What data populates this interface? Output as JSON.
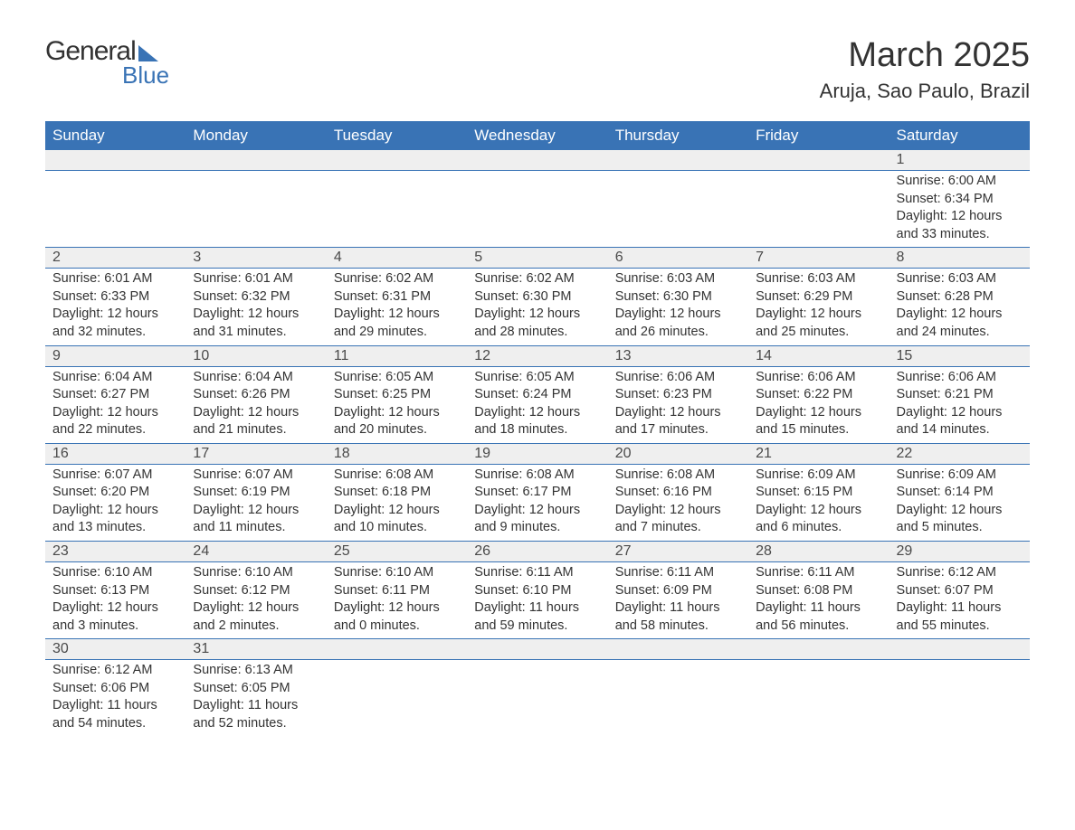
{
  "logo": {
    "general": "General",
    "blue": "Blue"
  },
  "header": {
    "month_title": "March 2025",
    "location": "Aruja, Sao Paulo, Brazil"
  },
  "colors": {
    "header_bg": "#3973b5",
    "day_number_bg": "#efefef",
    "text": "#333333",
    "header_text": "#ffffff"
  },
  "weekdays": [
    "Sunday",
    "Monday",
    "Tuesday",
    "Wednesday",
    "Thursday",
    "Friday",
    "Saturday"
  ],
  "weeks": [
    [
      {
        "day": "",
        "sunrise": "",
        "sunset": "",
        "daylight": ""
      },
      {
        "day": "",
        "sunrise": "",
        "sunset": "",
        "daylight": ""
      },
      {
        "day": "",
        "sunrise": "",
        "sunset": "",
        "daylight": ""
      },
      {
        "day": "",
        "sunrise": "",
        "sunset": "",
        "daylight": ""
      },
      {
        "day": "",
        "sunrise": "",
        "sunset": "",
        "daylight": ""
      },
      {
        "day": "",
        "sunrise": "",
        "sunset": "",
        "daylight": ""
      },
      {
        "day": "1",
        "sunrise": "Sunrise: 6:00 AM",
        "sunset": "Sunset: 6:34 PM",
        "daylight": "Daylight: 12 hours and 33 minutes."
      }
    ],
    [
      {
        "day": "2",
        "sunrise": "Sunrise: 6:01 AM",
        "sunset": "Sunset: 6:33 PM",
        "daylight": "Daylight: 12 hours and 32 minutes."
      },
      {
        "day": "3",
        "sunrise": "Sunrise: 6:01 AM",
        "sunset": "Sunset: 6:32 PM",
        "daylight": "Daylight: 12 hours and 31 minutes."
      },
      {
        "day": "4",
        "sunrise": "Sunrise: 6:02 AM",
        "sunset": "Sunset: 6:31 PM",
        "daylight": "Daylight: 12 hours and 29 minutes."
      },
      {
        "day": "5",
        "sunrise": "Sunrise: 6:02 AM",
        "sunset": "Sunset: 6:30 PM",
        "daylight": "Daylight: 12 hours and 28 minutes."
      },
      {
        "day": "6",
        "sunrise": "Sunrise: 6:03 AM",
        "sunset": "Sunset: 6:30 PM",
        "daylight": "Daylight: 12 hours and 26 minutes."
      },
      {
        "day": "7",
        "sunrise": "Sunrise: 6:03 AM",
        "sunset": "Sunset: 6:29 PM",
        "daylight": "Daylight: 12 hours and 25 minutes."
      },
      {
        "day": "8",
        "sunrise": "Sunrise: 6:03 AM",
        "sunset": "Sunset: 6:28 PM",
        "daylight": "Daylight: 12 hours and 24 minutes."
      }
    ],
    [
      {
        "day": "9",
        "sunrise": "Sunrise: 6:04 AM",
        "sunset": "Sunset: 6:27 PM",
        "daylight": "Daylight: 12 hours and 22 minutes."
      },
      {
        "day": "10",
        "sunrise": "Sunrise: 6:04 AM",
        "sunset": "Sunset: 6:26 PM",
        "daylight": "Daylight: 12 hours and 21 minutes."
      },
      {
        "day": "11",
        "sunrise": "Sunrise: 6:05 AM",
        "sunset": "Sunset: 6:25 PM",
        "daylight": "Daylight: 12 hours and 20 minutes."
      },
      {
        "day": "12",
        "sunrise": "Sunrise: 6:05 AM",
        "sunset": "Sunset: 6:24 PM",
        "daylight": "Daylight: 12 hours and 18 minutes."
      },
      {
        "day": "13",
        "sunrise": "Sunrise: 6:06 AM",
        "sunset": "Sunset: 6:23 PM",
        "daylight": "Daylight: 12 hours and 17 minutes."
      },
      {
        "day": "14",
        "sunrise": "Sunrise: 6:06 AM",
        "sunset": "Sunset: 6:22 PM",
        "daylight": "Daylight: 12 hours and 15 minutes."
      },
      {
        "day": "15",
        "sunrise": "Sunrise: 6:06 AM",
        "sunset": "Sunset: 6:21 PM",
        "daylight": "Daylight: 12 hours and 14 minutes."
      }
    ],
    [
      {
        "day": "16",
        "sunrise": "Sunrise: 6:07 AM",
        "sunset": "Sunset: 6:20 PM",
        "daylight": "Daylight: 12 hours and 13 minutes."
      },
      {
        "day": "17",
        "sunrise": "Sunrise: 6:07 AM",
        "sunset": "Sunset: 6:19 PM",
        "daylight": "Daylight: 12 hours and 11 minutes."
      },
      {
        "day": "18",
        "sunrise": "Sunrise: 6:08 AM",
        "sunset": "Sunset: 6:18 PM",
        "daylight": "Daylight: 12 hours and 10 minutes."
      },
      {
        "day": "19",
        "sunrise": "Sunrise: 6:08 AM",
        "sunset": "Sunset: 6:17 PM",
        "daylight": "Daylight: 12 hours and 9 minutes."
      },
      {
        "day": "20",
        "sunrise": "Sunrise: 6:08 AM",
        "sunset": "Sunset: 6:16 PM",
        "daylight": "Daylight: 12 hours and 7 minutes."
      },
      {
        "day": "21",
        "sunrise": "Sunrise: 6:09 AM",
        "sunset": "Sunset: 6:15 PM",
        "daylight": "Daylight: 12 hours and 6 minutes."
      },
      {
        "day": "22",
        "sunrise": "Sunrise: 6:09 AM",
        "sunset": "Sunset: 6:14 PM",
        "daylight": "Daylight: 12 hours and 5 minutes."
      }
    ],
    [
      {
        "day": "23",
        "sunrise": "Sunrise: 6:10 AM",
        "sunset": "Sunset: 6:13 PM",
        "daylight": "Daylight: 12 hours and 3 minutes."
      },
      {
        "day": "24",
        "sunrise": "Sunrise: 6:10 AM",
        "sunset": "Sunset: 6:12 PM",
        "daylight": "Daylight: 12 hours and 2 minutes."
      },
      {
        "day": "25",
        "sunrise": "Sunrise: 6:10 AM",
        "sunset": "Sunset: 6:11 PM",
        "daylight": "Daylight: 12 hours and 0 minutes."
      },
      {
        "day": "26",
        "sunrise": "Sunrise: 6:11 AM",
        "sunset": "Sunset: 6:10 PM",
        "daylight": "Daylight: 11 hours and 59 minutes."
      },
      {
        "day": "27",
        "sunrise": "Sunrise: 6:11 AM",
        "sunset": "Sunset: 6:09 PM",
        "daylight": "Daylight: 11 hours and 58 minutes."
      },
      {
        "day": "28",
        "sunrise": "Sunrise: 6:11 AM",
        "sunset": "Sunset: 6:08 PM",
        "daylight": "Daylight: 11 hours and 56 minutes."
      },
      {
        "day": "29",
        "sunrise": "Sunrise: 6:12 AM",
        "sunset": "Sunset: 6:07 PM",
        "daylight": "Daylight: 11 hours and 55 minutes."
      }
    ],
    [
      {
        "day": "30",
        "sunrise": "Sunrise: 6:12 AM",
        "sunset": "Sunset: 6:06 PM",
        "daylight": "Daylight: 11 hours and 54 minutes."
      },
      {
        "day": "31",
        "sunrise": "Sunrise: 6:13 AM",
        "sunset": "Sunset: 6:05 PM",
        "daylight": "Daylight: 11 hours and 52 minutes."
      },
      {
        "day": "",
        "sunrise": "",
        "sunset": "",
        "daylight": ""
      },
      {
        "day": "",
        "sunrise": "",
        "sunset": "",
        "daylight": ""
      },
      {
        "day": "",
        "sunrise": "",
        "sunset": "",
        "daylight": ""
      },
      {
        "day": "",
        "sunrise": "",
        "sunset": "",
        "daylight": ""
      },
      {
        "day": "",
        "sunrise": "",
        "sunset": "",
        "daylight": ""
      }
    ]
  ]
}
